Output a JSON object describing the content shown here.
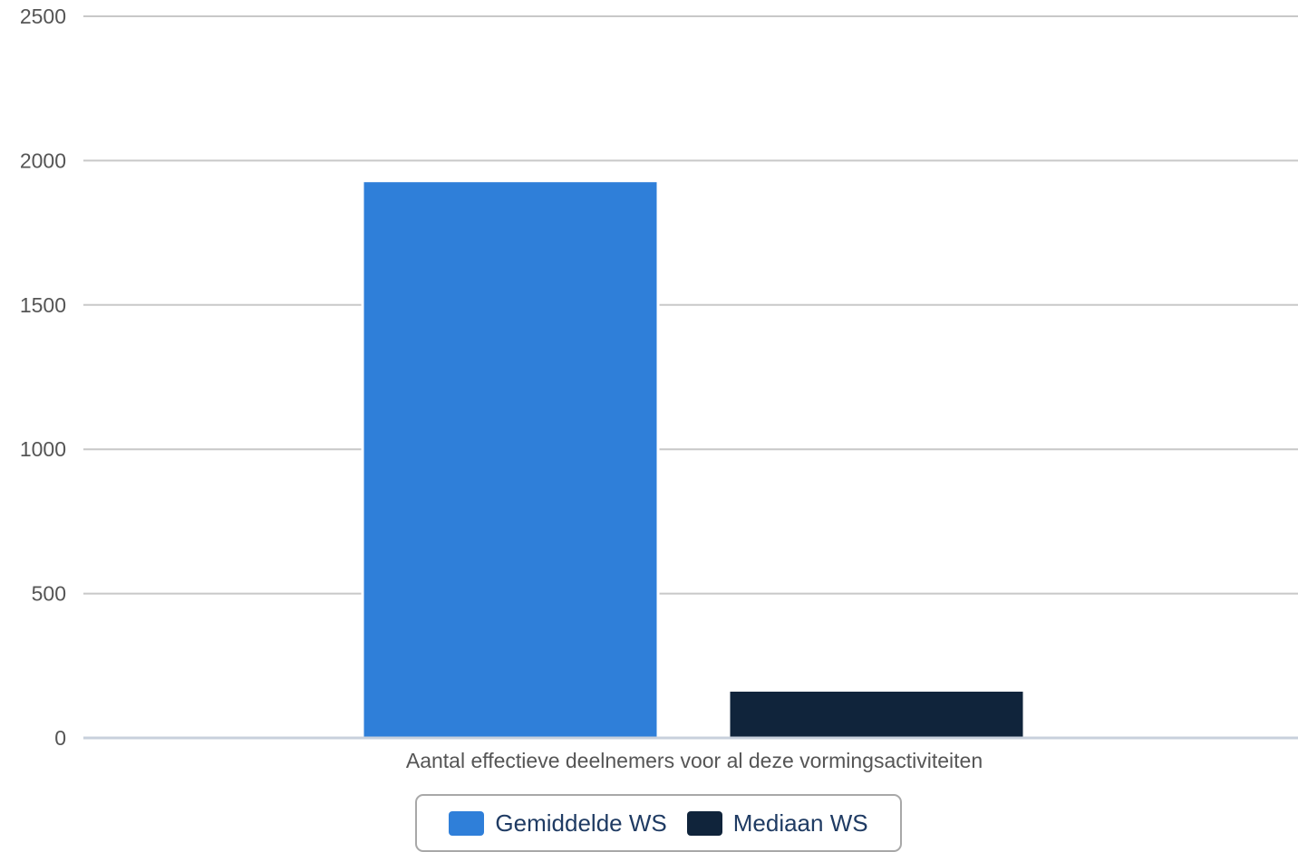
{
  "chart_data": {
    "type": "bar",
    "categories": [
      "Aantal effectieve deelnemers voor al deze vormingsactiviteiten"
    ],
    "series": [
      {
        "name": "Gemiddelde WS",
        "values": [
          1930
        ],
        "color": "#2f7fd9"
      },
      {
        "name": "Mediaan WS",
        "values": [
          165
        ],
        "color": "#10243b"
      }
    ],
    "ylim": [
      0,
      2500
    ],
    "yticks": [
      0,
      500,
      1000,
      1500,
      2000,
      2500
    ],
    "grid": true,
    "legend_position": "bottom-center"
  }
}
